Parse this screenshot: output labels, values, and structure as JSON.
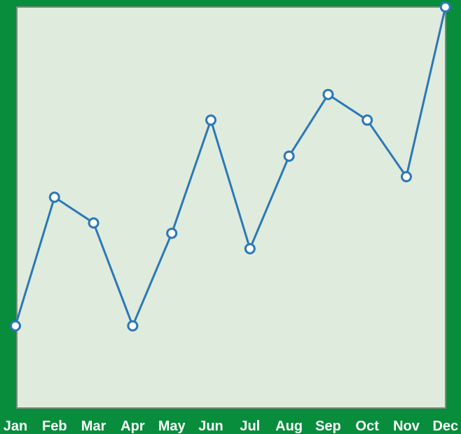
{
  "colors": {
    "background": "#078d3b",
    "plot_area": "#dfebdd",
    "plot_border": "#7a8a7a",
    "line": "#2b78b6",
    "marker_fill": "#ffffff",
    "tick_label": "#ffffff"
  },
  "chart_data": {
    "type": "line",
    "title": "",
    "xlabel": "",
    "ylabel": "",
    "categories": [
      "Jan",
      "Feb",
      "Mar",
      "Apr",
      "May",
      "Jun",
      "Jul",
      "Aug",
      "Sep",
      "Oct",
      "Nov",
      "Dec"
    ],
    "series": [
      {
        "values": [
          20,
          45,
          40,
          20,
          38,
          60,
          35,
          53,
          65,
          60,
          49,
          82
        ]
      }
    ],
    "ylim": [
      4,
      82
    ],
    "grid": false,
    "y_axis_visible": false,
    "markers": "hollow-circle"
  }
}
